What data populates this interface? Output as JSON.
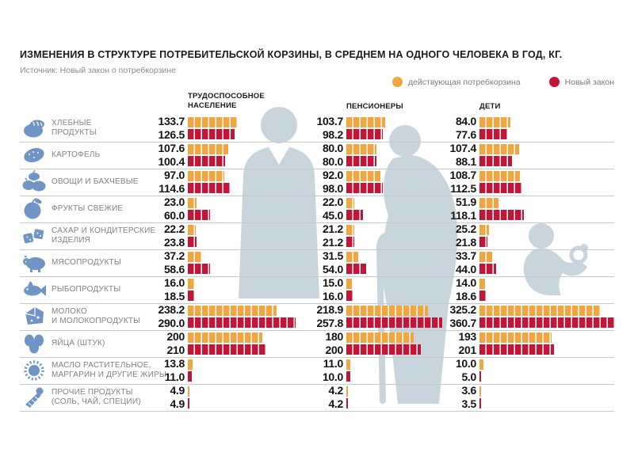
{
  "header": {
    "title": "ИЗМЕНЕНИЯ В СТРУКТУРЕ ПОТРЕБИТЕЛЬСКОЙ КОРЗИНЫ, В СРЕДНЕМ НА ОДНОГО ЧЕЛОВЕКА В ГОД, КГ.",
    "source": "Источник: Новый закон о потребкорзине"
  },
  "colors": {
    "current_basket": "#F2A640",
    "new_law": "#C41438",
    "category_icon_blue": "#6E95C5",
    "silhouette": "#C9D5DC",
    "gridline": "#C9C9C9",
    "label_gray": "#828282",
    "value_dark": "#141414"
  },
  "chart_data": {
    "type": "bar",
    "orientation": "horizontal",
    "title": "ИЗМЕНЕНИЯ В СТРУКТУРЕ ПОТРЕБИТЕЛЬСКОЙ КОРЗИНЫ, В СРЕДНЕМ НА ОДНОГО ЧЕЛОВЕКА В ГОД, КГ.",
    "source": "Источник: Новый закон о потребкорзине",
    "legend_position": "top-right",
    "legend": [
      {
        "label": "действующая потребкорзина",
        "color": "#F2A640"
      },
      {
        "label": "Новый закон",
        "color": "#C41438"
      }
    ],
    "series_names": [
      "действующая потребкорзина",
      "Новый закон"
    ],
    "groups": [
      {
        "label": "ТРУДОСПОСОБНОЕ\nНАСЕЛЕНИЕ",
        "silhouette": "adult"
      },
      {
        "label": "ПЕНСИОНЕРЫ",
        "silhouette": "pensioner"
      },
      {
        "label": "ДЕТИ",
        "silhouette": "baby"
      }
    ],
    "rows": [
      {
        "category": "ХЛЕБНЫЕ\nПРОДУКТЫ",
        "icon": "bread-icon",
        "values": [
          [
            "133.7",
            "126.5"
          ],
          [
            "103.7",
            "98.2"
          ],
          [
            "84.0",
            "77.6"
          ]
        ]
      },
      {
        "category": "КАРТОФЕЛЬ",
        "icon": "potato-icon",
        "values": [
          [
            "107.6",
            "100.4"
          ],
          [
            "80.0",
            "80.0"
          ],
          [
            "107.4",
            "88.1"
          ]
        ]
      },
      {
        "category": "ОВОЩИ И БАХЧЕВЫЕ",
        "icon": "vegetables-icon",
        "values": [
          [
            "97.0",
            "114.6"
          ],
          [
            "92.0",
            "98.0"
          ],
          [
            "108.7",
            "112.5"
          ]
        ]
      },
      {
        "category": "ФРУКТЫ СВЕЖИЕ",
        "icon": "apple-icon",
        "values": [
          [
            "23.0",
            "60.0"
          ],
          [
            "22.0",
            "45.0"
          ],
          [
            "51.9",
            "118.1"
          ]
        ]
      },
      {
        "category": "САХАР И КОНДИТЕРСКИЕ\nИЗДЕЛИЯ",
        "icon": "sugar-icon",
        "values": [
          [
            "22.2",
            "23.8"
          ],
          [
            "21.2",
            "21.2"
          ],
          [
            "25.2",
            "21.8"
          ]
        ]
      },
      {
        "category": "МЯСОПРОДУКТЫ",
        "icon": "meat-icon",
        "values": [
          [
            "37.2",
            "58.6"
          ],
          [
            "31.5",
            "54.0"
          ],
          [
            "33.7",
            "44.0"
          ]
        ]
      },
      {
        "category": "РЫБОПРОДУКТЫ",
        "icon": "fish-icon",
        "values": [
          [
            "16.0",
            "18.5"
          ],
          [
            "15.0",
            "16.0"
          ],
          [
            "14.0",
            "18.6"
          ]
        ]
      },
      {
        "category": "МОЛОКО\nИ МОЛОКОПРОДУКТЫ",
        "icon": "milk-icon",
        "values": [
          [
            "238.2",
            "290.0"
          ],
          [
            "218.9",
            "257.8"
          ],
          [
            "325.2",
            "360.7"
          ]
        ]
      },
      {
        "category": "ЯЙЦА (ШТУК)",
        "icon": "eggs-icon",
        "values": [
          [
            "200",
            "210"
          ],
          [
            "180",
            "200"
          ],
          [
            "193",
            "201"
          ]
        ]
      },
      {
        "category": "МАСЛО РАСТИТЕЛЬНОЕ,\nМАРГАРИН И ДРУГИЕ ЖИРЫ",
        "icon": "oil-icon",
        "values": [
          [
            "13.8",
            "11.0"
          ],
          [
            "11.0",
            "10.0"
          ],
          [
            "10.0",
            "5.0"
          ]
        ]
      },
      {
        "category": "ПРОЧИЕ ПРОДУКТЫ\n(СОЛЬ, ЧАЙ, СПЕЦИИ)",
        "icon": "spices-icon",
        "values": [
          [
            "4.9",
            "4.9"
          ],
          [
            "4.2",
            "4.2"
          ],
          [
            "3.6",
            "3.5"
          ]
        ]
      }
    ]
  }
}
